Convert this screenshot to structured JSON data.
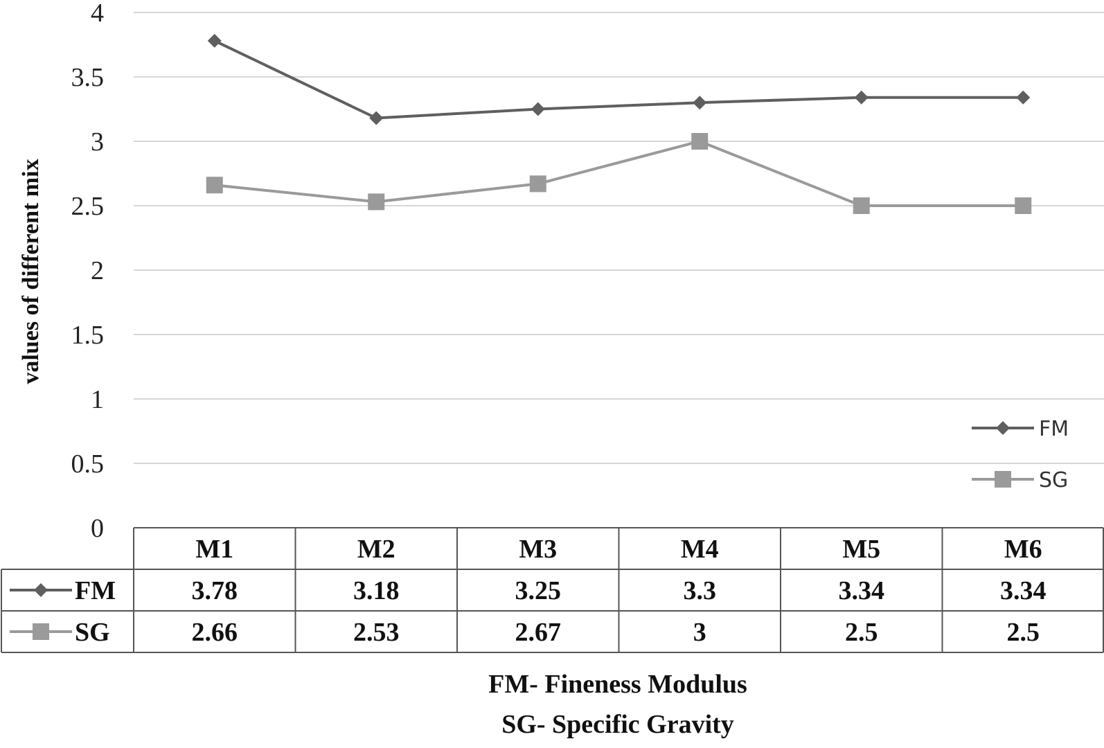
{
  "chart_data": {
    "type": "line",
    "categories": [
      "M1",
      "M2",
      "M3",
      "M4",
      "M5",
      "M6"
    ],
    "series": [
      {
        "name": "FM",
        "values": [
          3.78,
          3.18,
          3.25,
          3.3,
          3.34,
          3.34
        ],
        "value_labels": [
          "3.78",
          "3.18",
          "3.25",
          "3.3",
          "3.34",
          "3.34"
        ],
        "color": "#5f5f5f",
        "marker": "diamond"
      },
      {
        "name": "SG",
        "values": [
          2.66,
          2.53,
          2.67,
          3,
          2.5,
          2.5
        ],
        "value_labels": [
          "2.66",
          "2.53",
          "2.67",
          "3",
          "2.5",
          "2.5"
        ],
        "color": "#9a9a9a",
        "marker": "square"
      }
    ],
    "ylabel": "values of different mix",
    "ylim": [
      0,
      4
    ],
    "yticks": [
      0,
      0.5,
      1,
      1.5,
      2,
      2.5,
      3,
      3.5,
      4
    ],
    "ytick_labels": [
      "0",
      "0.5",
      "1",
      "1.5",
      "2",
      "2.5",
      "3",
      "3.5",
      "4"
    ],
    "grid": true,
    "legend_position": "bottom-right",
    "data_table": true
  },
  "notes": {
    "line1": "FM- Fineness Modulus",
    "line2": "SG- Specific Gravity"
  }
}
